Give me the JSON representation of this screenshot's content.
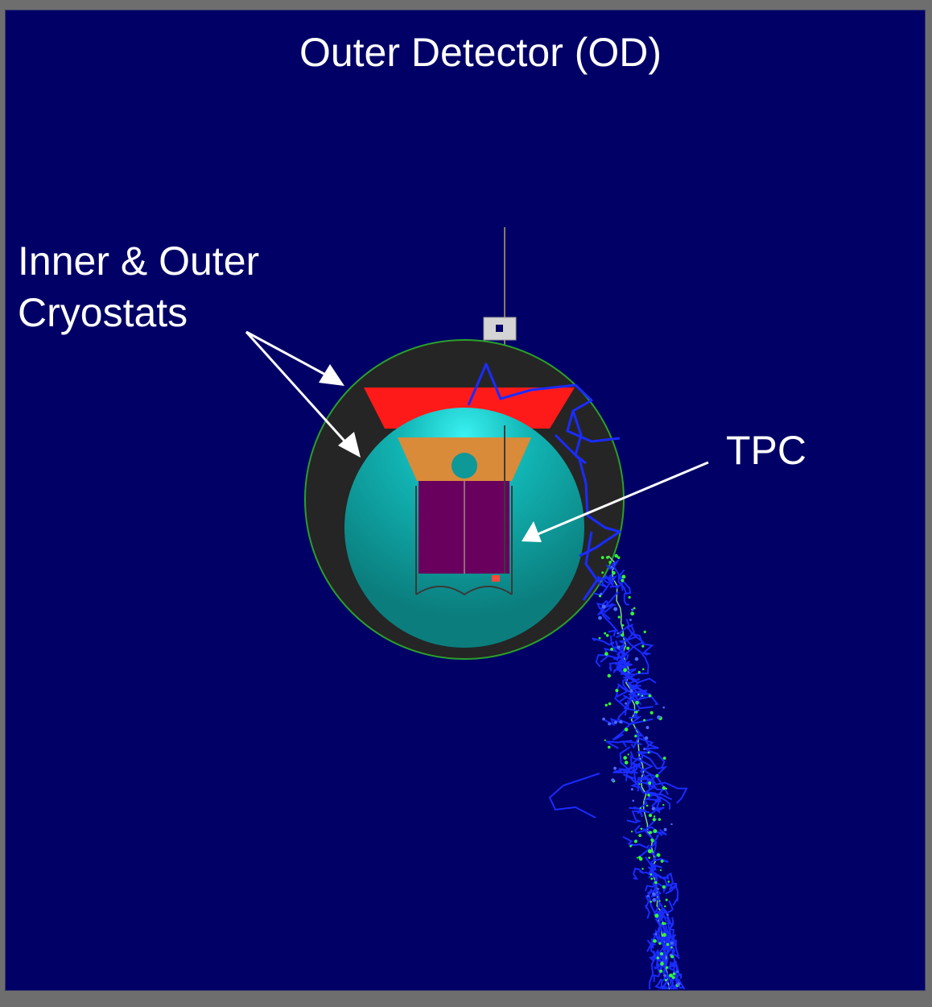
{
  "diagram": {
    "title": "Outer Detector (OD)",
    "labels": {
      "cryostats_line1": "Inner & Outer",
      "cryostats_line2": "Cryostats",
      "tpc": "TPC"
    }
  },
  "colors": {
    "background": "#000066",
    "frame": "#6e6e6e",
    "outer_cryostat": "#252525",
    "outer_cryostat_edge": "#2aa02a",
    "inner_cryostat": "#0e8f8f",
    "inner_cryostat_highlight": "#22e6e6",
    "top_cap": "#ff1a1a",
    "tpc_top": "#d98b3a",
    "tpc_body": "#6a005e",
    "tracks": "#1a2cff",
    "track_hits": "#33ff33",
    "arrows": "#ffffff"
  }
}
